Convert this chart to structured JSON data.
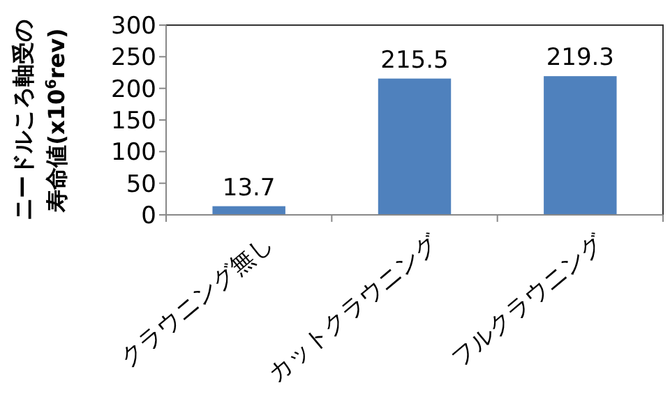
{
  "chart_data": {
    "type": "bar",
    "ylabel": "ニードルころ軸受の寿命値(x10$^{6}$rev)",
    "categories": [
      "クラウニング無し",
      "カットクラウニング",
      "フルクラウニング"
    ],
    "values": [
      13.7,
      215.5,
      219.3
    ],
    "color": "#4f81bd",
    "ylim": [
      0,
      300
    ],
    "yticks": [
      0,
      50,
      100,
      150,
      200,
      250,
      300
    ],
    "data_labels": true,
    "grid": false
  }
}
